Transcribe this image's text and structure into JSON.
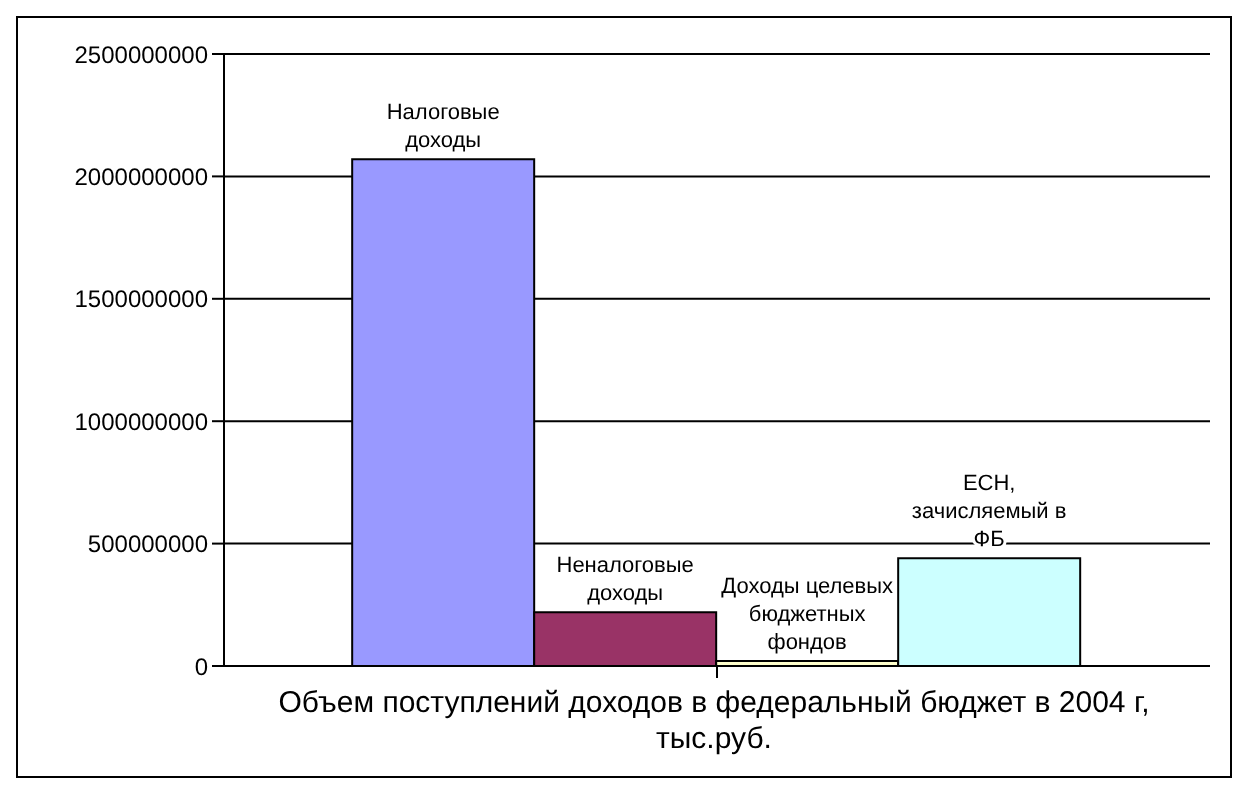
{
  "chart_data": {
    "type": "bar",
    "xlabel": "Объем поступлений доходов в федеральный бюджет в 2004 г, тыс.руб.",
    "categories": [
      null
    ],
    "series": [
      {
        "name": "Налоговые доходы",
        "color": "#9999ff",
        "values": [
          2070000000
        ]
      },
      {
        "name": "Неналоговые доходы",
        "color": "#993366",
        "values": [
          220000000
        ]
      },
      {
        "name": "Доходы целевых бюджетных фондов",
        "color": "#ffffcc",
        "values": [
          20000000
        ]
      },
      {
        "name": "ЕСН, зачисляемый в ФБ",
        "color": "#ccffff",
        "values": [
          440000000
        ]
      }
    ],
    "ylim": [
      0,
      2500000000
    ],
    "yticks": [
      0,
      500000000,
      1000000000,
      1500000000,
      2000000000,
      2500000000
    ],
    "grid": "y",
    "legend": false
  }
}
